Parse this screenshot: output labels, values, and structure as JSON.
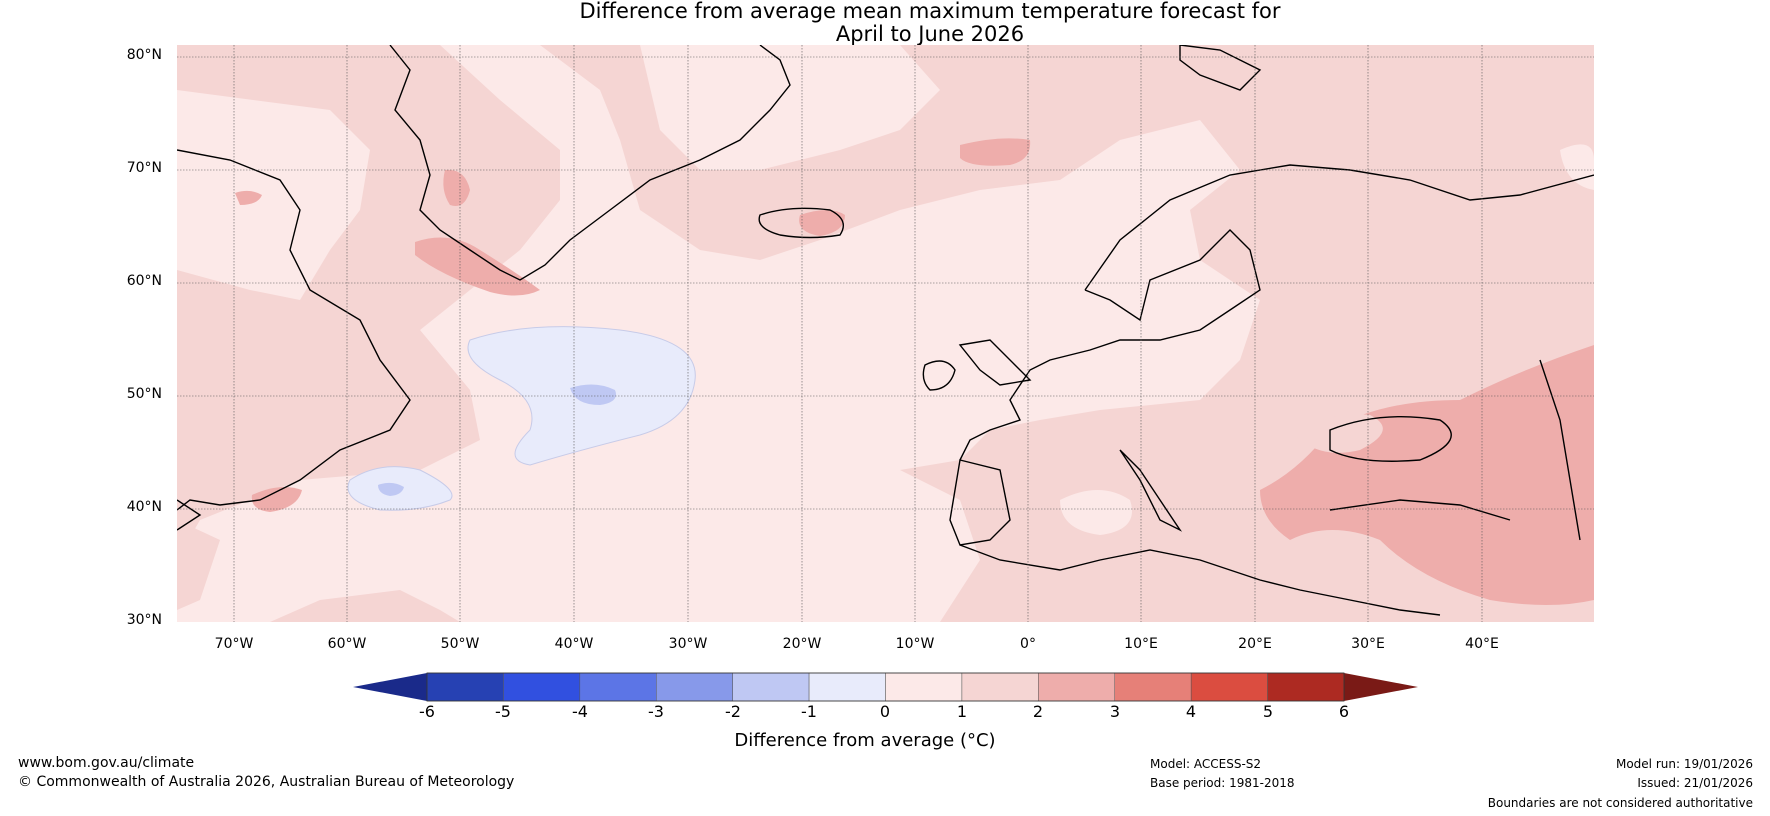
{
  "title_line1": "Difference from average mean maximum temperature forecast for",
  "title_line2": "April to June 2026",
  "lat_labels": [
    "80°N",
    "70°N",
    "60°N",
    "50°N",
    "40°N",
    "30°N"
  ],
  "lon_labels": [
    "70°W",
    "60°W",
    "50°W",
    "40°W",
    "30°W",
    "20°W",
    "10°W",
    "0°",
    "10°E",
    "20°E",
    "30°E",
    "40°E"
  ],
  "colorbar": {
    "label": "Difference from average (°C)",
    "ticks": [
      "-6",
      "-5",
      "-4",
      "-3",
      "-2",
      "-1",
      "0",
      "1",
      "2",
      "3",
      "4",
      "5",
      "6"
    ],
    "colors": [
      "#2641b3",
      "#3150e0",
      "#5c75e6",
      "#8799ea",
      "#bfc8f3",
      "#e8ebfb",
      "#fce9e8",
      "#f5d5d3",
      "#eeadab",
      "#e68078",
      "#db4d40",
      "#ad2a22"
    ],
    "under_color": "#1a2a8a",
    "over_color": "#7a1a16"
  },
  "footer": {
    "website": "www.bom.gov.au/climate",
    "copyright": "© Commonwealth of Australia 2026, Australian Bureau of Meteorology",
    "model": "Model: ACCESS-S2",
    "base_period": "Base period: 1981-2018",
    "model_run": "Model run: 19/01/2026",
    "issued": "Issued: 21/01/2026",
    "disclaimer": "Boundaries are not considered authoritative"
  }
}
